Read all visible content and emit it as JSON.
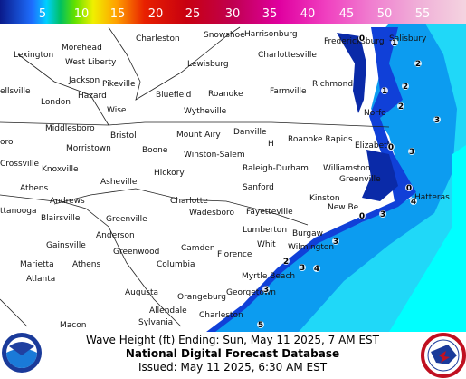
{
  "legend": {
    "labels": [
      5,
      10,
      15,
      20,
      25,
      30,
      35,
      40,
      45,
      50,
      55
    ]
  },
  "cities": [
    "Charleston",
    "Snowshoe",
    "Harrisonburg",
    "Fredericksburg",
    "Salisbury",
    "Morehead",
    "Lexington",
    "West Liberty",
    "Charlottesville",
    "Lewisburg",
    "Jackson",
    "Pikeville",
    "Richmond",
    "ellsville",
    "Hazard",
    "Bluefield",
    "Roanoke",
    "Farmville",
    "London",
    "Wise",
    "Wytheville",
    "Norfo",
    "Middlesboro",
    "Danville",
    "Bristol",
    "Mount Airy",
    "Roanoke Rapids",
    "oro",
    "H",
    "Elizabeth",
    "Morristown",
    "Boone",
    "Winston-Salem",
    "Crossville",
    "Knoxville",
    "Raleigh-Durham",
    "Williamston",
    "Hickory",
    "Greenville",
    "Athens",
    "Asheville",
    "Sanford",
    "Andrews",
    "Charlotte",
    "Kinston",
    "Hatteras",
    "New Be",
    "ttanooga",
    "Blairsville",
    "Greenville",
    "Wadesboro",
    "Fayetteville",
    "Lumberton",
    "Anderson",
    "Burgaw",
    "Gainsville",
    "Greenwood",
    "Whit",
    "Camden",
    "Wilmington",
    "Florence",
    "Marietta",
    "Athens",
    "Columbia",
    "Atlanta",
    "Myrtle Beach",
    "Augusta",
    "Georgetown",
    "Orangeburg",
    "Allendale",
    "Charleston",
    "Macon",
    "Sylvania"
  ],
  "wave_labels": [
    0,
    1,
    2,
    1,
    2,
    2,
    3,
    0,
    3,
    0,
    4,
    0,
    3,
    3,
    2,
    3,
    4,
    3,
    5
  ],
  "footer": {
    "line1": "Wave Height (ft) Ending: Sun, May 11 2025, 7 AM EST",
    "line2": "National Digital Forecast Database",
    "line3": "Issued: May 11 2025, 6:30 AM EST"
  }
}
